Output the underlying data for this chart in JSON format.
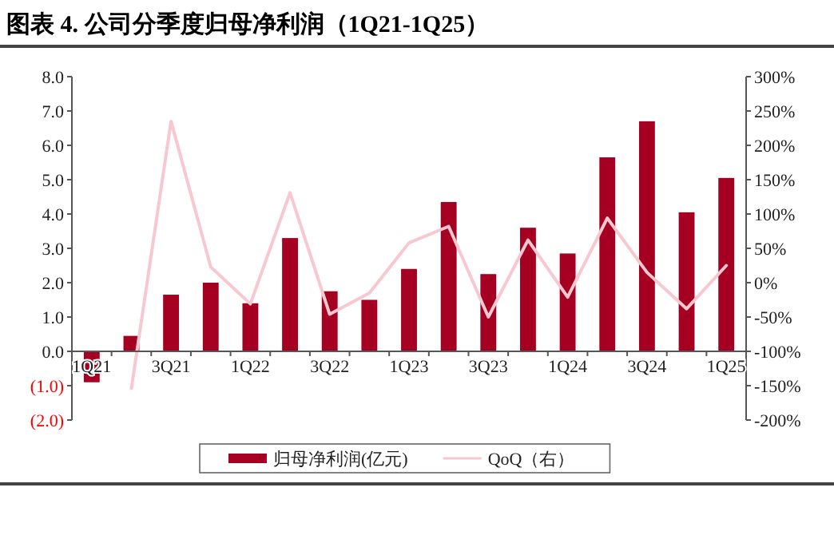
{
  "chart_data": {
    "type": "bar",
    "title": "图表 4. 公司分季度归母净利润（1Q21-1Q25）",
    "categories": [
      "1Q21",
      null,
      "3Q21",
      null,
      "1Q22",
      null,
      "3Q22",
      null,
      "1Q23",
      null,
      "3Q23",
      null,
      "1Q24",
      null,
      "3Q24",
      null,
      "1Q25"
    ],
    "series": [
      {
        "name": "归母净利润(亿元)",
        "color": "#a50021",
        "values": [
          -0.9,
          0.45,
          1.65,
          2.0,
          1.4,
          3.3,
          1.75,
          1.5,
          2.4,
          4.35,
          2.25,
          3.6,
          2.85,
          5.65,
          6.7,
          4.05,
          5.05
        ]
      },
      {
        "name": "QoQ（右）",
        "type": "line",
        "axis": "y2",
        "color": "#f7c8cf",
        "values": [
          null,
          -154,
          235,
          23,
          -31,
          131,
          -46,
          -15,
          58,
          82,
          -50,
          62,
          -21,
          94,
          15,
          -38,
          25
        ]
      }
    ],
    "ylim": [
      -2,
      8
    ],
    "yticks": [
      {
        "value": -2,
        "label": "(2.0)"
      },
      {
        "value": -1,
        "label": "(1.0)"
      },
      {
        "value": 0,
        "label": "0.0"
      },
      {
        "value": 1,
        "label": "1.0"
      },
      {
        "value": 2,
        "label": "2.0"
      },
      {
        "value": 3,
        "label": "3.0"
      },
      {
        "value": 4,
        "label": "4.0"
      },
      {
        "value": 5,
        "label": "5.0"
      },
      {
        "value": 6,
        "label": "6.0"
      },
      {
        "value": 7,
        "label": "7.0"
      },
      {
        "value": 8,
        "label": "8.0"
      }
    ],
    "y2lim": [
      -200,
      300
    ],
    "y2ticks": [
      {
        "value": -200,
        "label": "-200%"
      },
      {
        "value": -150,
        "label": "-150%"
      },
      {
        "value": -100,
        "label": "-100%"
      },
      {
        "value": -50,
        "label": "-50%"
      },
      {
        "value": 0,
        "label": "0%"
      },
      {
        "value": 50,
        "label": "50%"
      },
      {
        "value": 100,
        "label": "100%"
      },
      {
        "value": 150,
        "label": "150%"
      },
      {
        "value": 200,
        "label": "200%"
      },
      {
        "value": 250,
        "label": "250%"
      },
      {
        "value": 300,
        "label": "300%"
      }
    ],
    "grid": false,
    "legend": "bottom"
  }
}
